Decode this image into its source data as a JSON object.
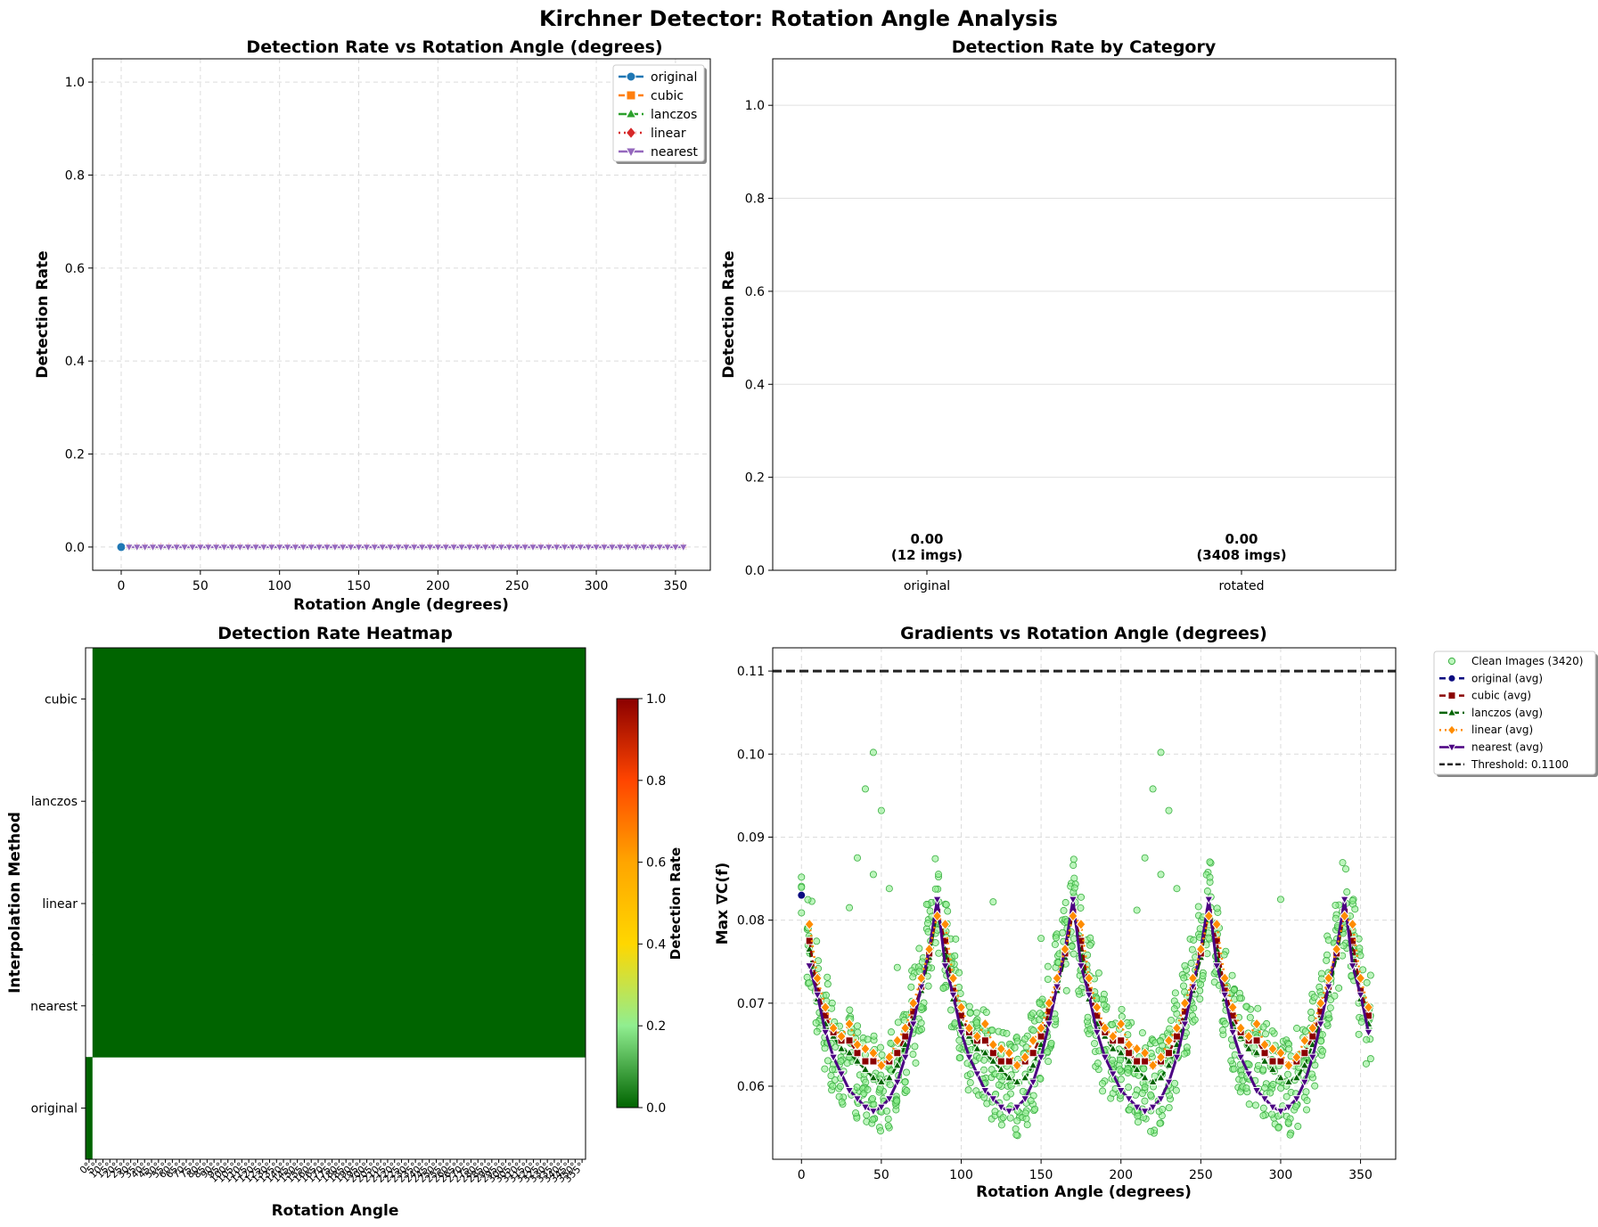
{
  "figure_title": "Kirchner Detector: Rotation Angle Analysis",
  "colors": {
    "original": "#1f77b4",
    "cubic": "#ff7f0e",
    "lanczos": "#2ca02c",
    "linear": "#d62728",
    "nearest": "#9467bd",
    "avg_original": "#0a0a80",
    "avg_cubic": "#8b0000",
    "avg_lanczos": "#006400",
    "avg_linear": "#ff8c00",
    "avg_nearest": "#4b0082",
    "clean": "#90ee90",
    "heatmap_zero": "#006400",
    "threshold": "#222222"
  },
  "chart_data": [
    {
      "type": "line",
      "title": "Detection Rate vs Rotation Angle (degrees)",
      "xlabel": "Rotation Angle (degrees)",
      "ylabel": "Detection Rate",
      "xlim": [
        -18,
        372
      ],
      "ylim": [
        -0.05,
        1.05
      ],
      "xticks": [
        0,
        50,
        100,
        150,
        200,
        250,
        300,
        350
      ],
      "yticks": [
        0.0,
        0.2,
        0.4,
        0.6,
        0.8,
        1.0
      ],
      "grid": true,
      "legend_placement": "top-right",
      "x_step": 5,
      "x_range": [
        5,
        355
      ],
      "series": [
        {
          "name": "original",
          "x": [
            0
          ],
          "value": 0.0,
          "marker": "circle"
        },
        {
          "name": "cubic",
          "value": 0.0,
          "marker": "square"
        },
        {
          "name": "lanczos",
          "value": 0.0,
          "marker": "triangle-up"
        },
        {
          "name": "linear",
          "value": 0.0,
          "marker": "diamond"
        },
        {
          "name": "nearest",
          "value": 0.0,
          "marker": "triangle-down"
        }
      ]
    },
    {
      "type": "bar",
      "title": "Detection Rate by Category",
      "ylabel": "Detection Rate",
      "categories": [
        "original",
        "rotated"
      ],
      "values": [
        0.0,
        0.0
      ],
      "value_labels": [
        "0.00",
        "0.00"
      ],
      "count_labels": [
        "(12 imgs)",
        "(3408 imgs)"
      ],
      "ylim": [
        0,
        1.1
      ],
      "yticks": [
        0.0,
        0.2,
        0.4,
        0.6,
        0.8,
        1.0
      ],
      "grid": "y"
    },
    {
      "type": "heatmap",
      "title": "Detection Rate Heatmap",
      "xlabel": "Rotation Angle",
      "ylabel": "Interpolation Method",
      "rows": [
        "cubic",
        "lanczos",
        "linear",
        "nearest",
        "original"
      ],
      "columns": [
        "0°",
        "5°",
        "10°",
        "15°",
        "20°",
        "25°",
        "30°",
        "35°",
        "40°",
        "45°",
        "50°",
        "55°",
        "60°",
        "65°",
        "70°",
        "75°",
        "80°",
        "85°",
        "90°",
        "95°",
        "100°",
        "105°",
        "110°",
        "115°",
        "120°",
        "125°",
        "130°",
        "135°",
        "140°",
        "145°",
        "150°",
        "155°",
        "160°",
        "165°",
        "170°",
        "175°",
        "180°",
        "185°",
        "190°",
        "195°",
        "200°",
        "205°",
        "210°",
        "215°",
        "220°",
        "225°",
        "230°",
        "235°",
        "240°",
        "245°",
        "250°",
        "255°",
        "260°",
        "265°",
        "270°",
        "275°",
        "280°",
        "285°",
        "290°",
        "295°",
        "300°",
        "305°",
        "310°",
        "315°",
        "320°",
        "325°",
        "330°",
        "335°",
        "340°",
        "345°",
        "350°",
        "355°"
      ],
      "value_notes": "cubic/lanczos/linear/nearest rows are 0.0 for 5°–355° and missing at 0°; original row is 0.0 at 0° and missing elsewhere",
      "colorbar_label": "Detection Rate",
      "colorbar_ticks": [
        0.0,
        0.2,
        0.4,
        0.6,
        0.8,
        1.0
      ],
      "colorbar_range": [
        0.0,
        1.0
      ]
    },
    {
      "type": "scatter",
      "title": "Gradients vs Rotation Angle (degrees)",
      "xlabel": "Rotation Angle (degrees)",
      "ylabel": "Max ∇C(f)",
      "xlim": [
        -18,
        372
      ],
      "ylim": [
        0.0512,
        0.1128
      ],
      "xticks": [
        0,
        50,
        100,
        150,
        200,
        250,
        300,
        350
      ],
      "yticks": [
        0.06,
        0.07,
        0.08,
        0.09,
        0.1,
        0.11
      ],
      "grid": true,
      "legend_placement": "outside-right",
      "threshold": 0.11,
      "angles": [
        5,
        10,
        15,
        20,
        25,
        30,
        35,
        40,
        45,
        50,
        55,
        60,
        65,
        70,
        75,
        80,
        85,
        90,
        95,
        100,
        105,
        110,
        115,
        120,
        125,
        130,
        135,
        140,
        145,
        150,
        155,
        160,
        165,
        170,
        175,
        180,
        185,
        190,
        195,
        200,
        205,
        210,
        215,
        220,
        225,
        230,
        235,
        240,
        245,
        250,
        255,
        260,
        265,
        270,
        275,
        280,
        285,
        290,
        295,
        300,
        305,
        310,
        315,
        320,
        325,
        330,
        335,
        340,
        345,
        350,
        355
      ],
      "series": [
        {
          "name": "Clean Images (3420)",
          "kind": "scatter",
          "count": 3420,
          "spread": 0.006
        },
        {
          "name": "original (avg)",
          "x": [
            0
          ],
          "y": [
            0.083
          ]
        },
        {
          "name": "cubic (avg)",
          "y": [
            0.0775,
            0.0715,
            0.0685,
            0.0665,
            0.0655,
            0.0655,
            0.064,
            0.063,
            0.063,
            0.0625,
            0.063,
            0.064,
            0.066,
            0.069,
            0.072,
            0.076,
            0.081,
            0.0775,
            0.0715,
            0.0685,
            0.0665,
            0.0655,
            0.0655,
            0.064,
            0.063,
            0.063,
            0.0625,
            0.063,
            0.064,
            0.066,
            0.069,
            0.072,
            0.076,
            0.081,
            0.0775,
            0.0715,
            0.0685,
            0.0665,
            0.0655,
            0.0655,
            0.064,
            0.063,
            0.063,
            0.0625,
            0.063,
            0.064,
            0.066,
            0.069,
            0.072,
            0.076,
            0.081,
            0.0775,
            0.0715,
            0.0685,
            0.0665,
            0.0655,
            0.0655,
            0.064,
            0.063,
            0.063,
            0.0625,
            0.063,
            0.064,
            0.066,
            0.069,
            0.072,
            0.076,
            0.081,
            0.0775,
            0.0715,
            0.0685
          ]
        },
        {
          "name": "lanczos (avg)",
          "y": [
            0.0765,
            0.0705,
            0.0675,
            0.066,
            0.0645,
            0.064,
            0.063,
            0.062,
            0.061,
            0.0605,
            0.061,
            0.0625,
            0.065,
            0.068,
            0.0715,
            0.0755,
            0.081,
            0.0765,
            0.0705,
            0.0675,
            0.066,
            0.0645,
            0.064,
            0.063,
            0.062,
            0.061,
            0.0605,
            0.061,
            0.0625,
            0.065,
            0.068,
            0.0715,
            0.0755,
            0.081,
            0.0765,
            0.0705,
            0.0675,
            0.066,
            0.0645,
            0.064,
            0.063,
            0.062,
            0.061,
            0.0605,
            0.061,
            0.0625,
            0.065,
            0.068,
            0.0715,
            0.0755,
            0.081,
            0.0765,
            0.0705,
            0.0675,
            0.066,
            0.0645,
            0.064,
            0.063,
            0.062,
            0.061,
            0.0605,
            0.061,
            0.0625,
            0.065,
            0.068,
            0.0715,
            0.0755,
            0.081,
            0.0765,
            0.0705,
            0.0675
          ]
        },
        {
          "name": "linear (avg)",
          "y": [
            0.0795,
            0.073,
            0.0695,
            0.067,
            0.066,
            0.0675,
            0.065,
            0.0645,
            0.064,
            0.0625,
            0.0635,
            0.0655,
            0.067,
            0.07,
            0.073,
            0.0765,
            0.0805,
            0.0795,
            0.073,
            0.0695,
            0.067,
            0.066,
            0.0675,
            0.065,
            0.0645,
            0.064,
            0.0625,
            0.0635,
            0.0655,
            0.067,
            0.07,
            0.073,
            0.0765,
            0.0805,
            0.0795,
            0.073,
            0.0695,
            0.067,
            0.066,
            0.0675,
            0.065,
            0.0645,
            0.064,
            0.0625,
            0.0635,
            0.0655,
            0.067,
            0.07,
            0.073,
            0.0765,
            0.0805,
            0.0795,
            0.073,
            0.0695,
            0.067,
            0.066,
            0.0675,
            0.065,
            0.0645,
            0.064,
            0.0625,
            0.0635,
            0.0655,
            0.067,
            0.07,
            0.073,
            0.0765,
            0.0805,
            0.0795,
            0.073,
            0.0695
          ]
        },
        {
          "name": "nearest (avg)",
          "y": [
            0.0745,
            0.071,
            0.0665,
            0.0635,
            0.0615,
            0.0595,
            0.0585,
            0.0575,
            0.057,
            0.0575,
            0.0585,
            0.0605,
            0.0635,
            0.0675,
            0.072,
            0.0765,
            0.0825,
            0.0745,
            0.071,
            0.0665,
            0.0635,
            0.0615,
            0.0595,
            0.0585,
            0.0575,
            0.057,
            0.0575,
            0.0585,
            0.0605,
            0.0635,
            0.0675,
            0.072,
            0.0765,
            0.0825,
            0.0745,
            0.071,
            0.0665,
            0.0635,
            0.0615,
            0.0595,
            0.0585,
            0.0575,
            0.057,
            0.0575,
            0.0585,
            0.0605,
            0.0635,
            0.0675,
            0.072,
            0.0765,
            0.0825,
            0.0745,
            0.071,
            0.0665,
            0.0635,
            0.0615,
            0.0595,
            0.0585,
            0.0575,
            0.057,
            0.0575,
            0.0585,
            0.0605,
            0.0635,
            0.0675,
            0.072,
            0.0765,
            0.0825,
            0.0745,
            0.071,
            0.0665
          ]
        },
        {
          "name": "Threshold: 0.1100",
          "kind": "hline",
          "value": 0.11
        }
      ],
      "outliers": [
        [
          40,
          0.0958
        ],
        [
          45,
          0.1002
        ],
        [
          50,
          0.0932
        ],
        [
          45,
          0.0855
        ],
        [
          35,
          0.0875
        ],
        [
          30,
          0.0815
        ],
        [
          55,
          0.0838
        ],
        [
          220,
          0.0958
        ],
        [
          225,
          0.1002
        ],
        [
          230,
          0.0932
        ],
        [
          225,
          0.0855
        ],
        [
          215,
          0.0875
        ],
        [
          210,
          0.0812
        ],
        [
          235,
          0.0838
        ],
        [
          300,
          0.0825
        ],
        [
          120,
          0.0822
        ],
        [
          150,
          0.0778
        ],
        [
          60,
          0.0743
        ],
        [
          240,
          0.0745
        ],
        [
          330,
          0.0776
        ]
      ]
    }
  ]
}
